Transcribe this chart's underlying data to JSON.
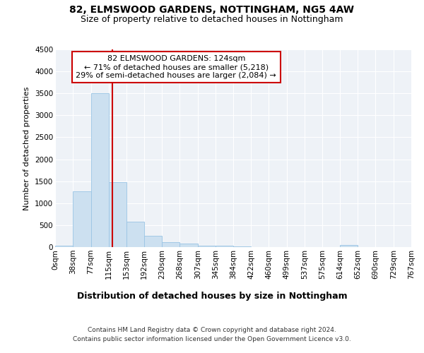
{
  "title": "82, ELMSWOOD GARDENS, NOTTINGHAM, NG5 4AW",
  "subtitle": "Size of property relative to detached houses in Nottingham",
  "xlabel": "Distribution of detached houses by size in Nottingham",
  "ylabel": "Number of detached properties",
  "footnote1": "Contains HM Land Registry data © Crown copyright and database right 2024.",
  "footnote2": "Contains public sector information licensed under the Open Government Licence v3.0.",
  "property_size": 124,
  "annotation_title": "82 ELMSWOOD GARDENS: 124sqm",
  "annotation_line1": "← 71% of detached houses are smaller (5,218)",
  "annotation_line2": "29% of semi-detached houses are larger (2,084) →",
  "bar_color": "#cce0f0",
  "bar_edge_color": "#99c4e4",
  "line_color": "#cc0000",
  "annotation_box_color": "#cc0000",
  "ylim": [
    0,
    4500
  ],
  "bin_edges": [
    0,
    38,
    77,
    115,
    153,
    192,
    230,
    268,
    307,
    345,
    384,
    422,
    460,
    499,
    537,
    575,
    614,
    652,
    690,
    729,
    767
  ],
  "bar_heights": [
    30,
    1270,
    3500,
    1480,
    575,
    250,
    115,
    75,
    40,
    25,
    10,
    5,
    5,
    0,
    0,
    0,
    50,
    0,
    0,
    0
  ],
  "background_color": "#eef2f7",
  "grid_color": "#ffffff",
  "title_fontsize": 10,
  "subtitle_fontsize": 9,
  "ylabel_fontsize": 8,
  "xlabel_fontsize": 9,
  "tick_fontsize": 7.5,
  "footnote_fontsize": 6.5,
  "annotation_fontsize": 8
}
